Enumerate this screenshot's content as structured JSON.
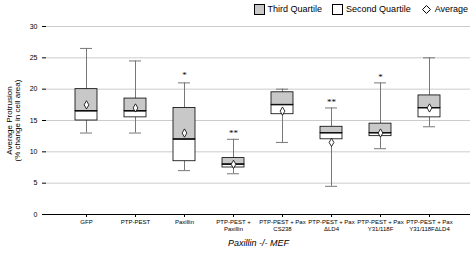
{
  "chart_data": {
    "type": "box",
    "categories": [
      "GFP",
      "PTP-PEST",
      "Paxillin",
      "PTP-PEST +\nPaxillin",
      "PTP-PEST + Pax\nCS238",
      "PTP-PEST + Pax\nΔLD4",
      "PTP-PEST + Pax\nY31/118F",
      "PTP-PEST + Pax\nY31/118FΔLD4"
    ],
    "xlabel": "Paxillin -/- MEF",
    "ylabel": "Average Protrusion\n(% change in cell area)",
    "ylim": [
      0,
      30
    ],
    "yticks": [
      0,
      5,
      10,
      15,
      20,
      25,
      30
    ],
    "grid": true,
    "legend": "upper right",
    "boxes": [
      {
        "whisker_low": 13.0,
        "q1": 15.0,
        "median": 16.5,
        "q3": 20.0,
        "whisker_high": 26.5,
        "mean": 17.5
      },
      {
        "whisker_low": 13.0,
        "q1": 15.5,
        "median": 16.5,
        "q3": 18.5,
        "whisker_high": 24.5,
        "mean": 17.0
      },
      {
        "whisker_low": 7.0,
        "q1": 8.5,
        "median": 12.0,
        "q3": 17.0,
        "whisker_high": 21.0,
        "mean": 13.0
      },
      {
        "whisker_low": 6.5,
        "q1": 7.5,
        "median": 8.0,
        "q3": 9.0,
        "whisker_high": 12.0,
        "mean": 8.0
      },
      {
        "whisker_low": 11.5,
        "q1": 16.0,
        "median": 17.5,
        "q3": 19.5,
        "whisker_high": 20.0,
        "mean": 16.5
      },
      {
        "whisker_low": 4.5,
        "q1": 12.0,
        "median": 13.0,
        "q3": 14.0,
        "whisker_high": 17.0,
        "mean": 11.5
      },
      {
        "whisker_low": 10.5,
        "q1": 12.5,
        "median": 13.0,
        "q3": 14.5,
        "whisker_high": 21.0,
        "mean": 13.0
      },
      {
        "whisker_low": 14.0,
        "q1": 15.5,
        "median": 17.0,
        "q3": 19.0,
        "whisker_high": 25.0,
        "mean": 17.0
      }
    ],
    "annotations": [
      {
        "x": "Paxillin",
        "y": 21.8,
        "text": "*"
      },
      {
        "x": "PTP-PEST +\nPaxillin",
        "y": 12.5,
        "text": "**"
      },
      {
        "x": "PTP-PEST + Pax\nΔLD4",
        "y": 17.5,
        "text": "**"
      },
      {
        "x": "PTP-PEST + Pax\nY31/118F",
        "y": 21.5,
        "text": "*"
      }
    ],
    "series": [
      {
        "name": "Third Quartile",
        "color": "#c8c8c8"
      },
      {
        "name": "Second Quartile",
        "color": "#ffffff"
      },
      {
        "name": "Average",
        "marker": "diamond"
      }
    ]
  }
}
